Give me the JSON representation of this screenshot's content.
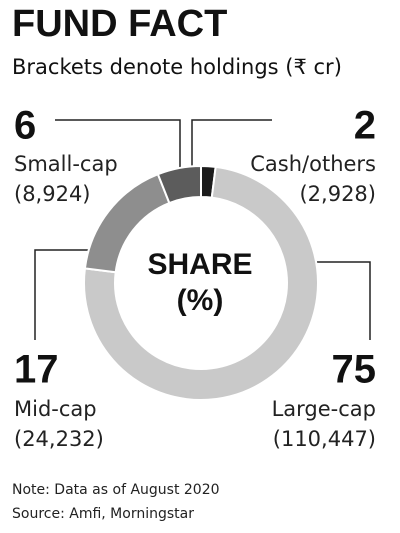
{
  "chart_data": {
    "type": "donut",
    "title": "FUND FACT",
    "subtitle": "Brackets denote holdings (₹ cr)",
    "center_label": [
      "SHARE",
      "(%)"
    ],
    "categories": [
      "Cash/others",
      "Large-cap",
      "Mid-cap",
      "Small-cap"
    ],
    "values": [
      2,
      75,
      17,
      6
    ],
    "holdings": [
      "(2,928)",
      "(110,447)",
      "(24,232)",
      "(8,924)"
    ],
    "colors": [
      "#1c1c1c",
      "#c9c9c9",
      "#8e8e8e",
      "#5c5c5c"
    ],
    "notes": [
      "Note: Data as of August 2020",
      "Source: Amfi, Morningstar"
    ]
  }
}
